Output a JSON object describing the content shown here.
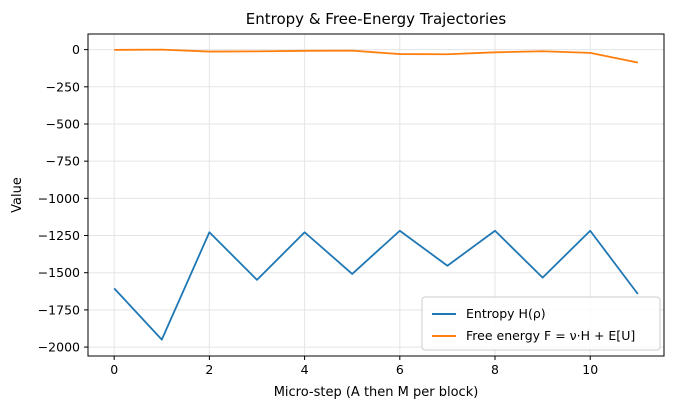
{
  "colors": {
    "entropy": "#1f77b4",
    "free_energy": "#ff7f0e",
    "grid": "#e5e5e5",
    "axis": "#000000",
    "legend_border": "#cccccc"
  },
  "chart_data": {
    "type": "line",
    "title": "Entropy & Free-Energy Trajectories",
    "xlabel": "Micro-step (A then M per block)",
    "ylabel": "Value",
    "xlim": [
      -0.55,
      11.55
    ],
    "ylim": [
      -2060,
      105
    ],
    "xticks": [
      0,
      2,
      4,
      6,
      8,
      10
    ],
    "yticks": [
      0,
      -250,
      -500,
      -750,
      -1000,
      -1250,
      -1500,
      -1750,
      -2000
    ],
    "xtick_labels": [
      "0",
      "2",
      "4",
      "6",
      "8",
      "10"
    ],
    "ytick_labels": [
      "0",
      "−250",
      "−500",
      "−750",
      "−1000",
      "−1250",
      "−1500",
      "−1750",
      "−2000"
    ],
    "grid": true,
    "legend_position": "lower-right",
    "x": [
      0,
      1,
      2,
      3,
      4,
      5,
      6,
      7,
      8,
      9,
      10,
      11
    ],
    "series": [
      {
        "name": "Entropy H(ρ)",
        "color": "#1f77b4",
        "values": [
          -1605,
          -1950,
          -1228,
          -1548,
          -1228,
          -1508,
          -1218,
          -1453,
          -1218,
          -1533,
          -1218,
          -1643
        ]
      },
      {
        "name": "Free energy F = ν·H + E[U]",
        "color": "#ff7f0e",
        "values": [
          -2,
          0,
          -13,
          -12,
          -8,
          -7,
          -30,
          -31,
          -18,
          -11,
          -22,
          -87
        ]
      }
    ]
  }
}
